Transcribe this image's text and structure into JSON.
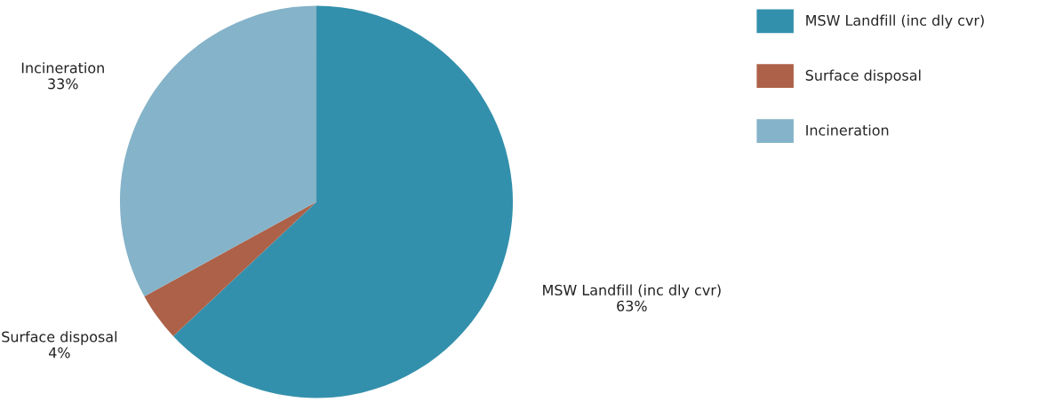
{
  "chart_data": {
    "type": "pie",
    "categories": [
      "MSW Landfill (inc dly cvr)",
      "Surface disposal",
      "Incineration"
    ],
    "values": [
      63,
      4,
      33
    ],
    "value_labels": [
      "63%",
      "4%",
      "33%"
    ],
    "colors": [
      "#3390ac",
      "#ad6148",
      "#85b3c9"
    ],
    "legend": "right"
  }
}
